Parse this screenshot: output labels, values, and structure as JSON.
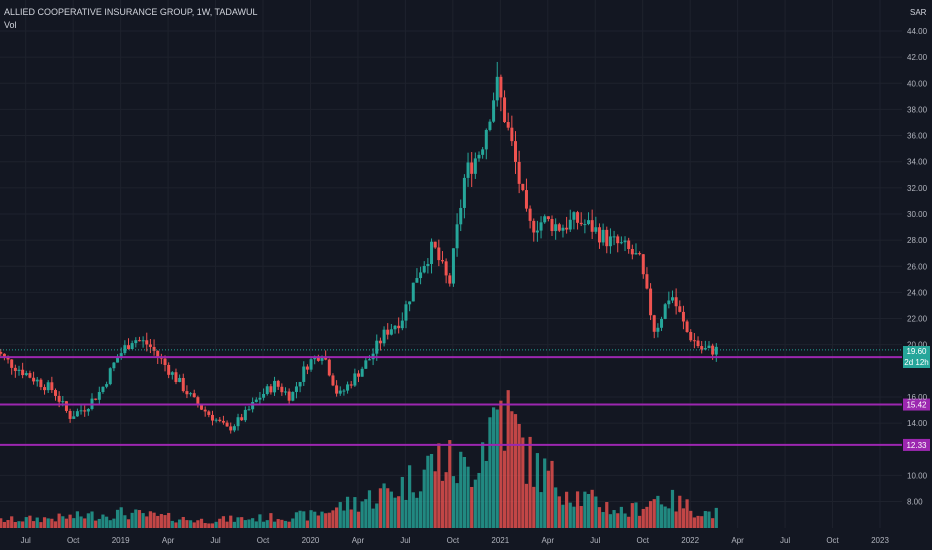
{
  "header": {
    "title": "ALLIED COOPERATIVE INSURANCE GROUP, 1W, TADAWUL",
    "volume_label": "Vol"
  },
  "currency": "SAR",
  "last_price": {
    "value": "19.60",
    "countdown": "2d 12h",
    "color": "#26a69a"
  },
  "colors": {
    "background": "#131722",
    "up": "#26a69a",
    "down": "#ef5350",
    "level_line": "#9c27b0",
    "grid": "#1e222d",
    "axis_text": "#b2b5be"
  },
  "chart_data": {
    "type": "candlestick",
    "title": "ALLIED COOPERATIVE INSURANCE GROUP, 1W, TADAWUL",
    "y_axis_ticks": [
      "8.00",
      "10.00",
      "14.00",
      "16.00",
      "20.00",
      "22.00",
      "24.00",
      "26.00",
      "28.00",
      "30.00",
      "32.00",
      "34.00",
      "36.00",
      "38.00",
      "40.00",
      "42.00",
      "44.00"
    ],
    "ylim": [
      6,
      46
    ],
    "x_axis_ticks": [
      "Jul",
      "Oct",
      "2019",
      "Apr",
      "Jul",
      "Oct",
      "2020",
      "Apr",
      "Jul",
      "Oct",
      "2021",
      "Apr",
      "Jul",
      "Oct",
      "2022",
      "Apr",
      "Jul",
      "Oct",
      "2023"
    ],
    "horizontal_levels": [
      {
        "value": 19.05,
        "label": "19.05"
      },
      {
        "value": 15.42,
        "label": "15.42"
      },
      {
        "value": 12.33,
        "label": "12.33"
      }
    ],
    "price_path": [
      [
        "2018-05",
        20.0
      ],
      [
        "2018-06",
        18.8
      ],
      [
        "2018-07",
        18.0
      ],
      [
        "2018-08",
        17.2
      ],
      [
        "2018-09",
        16.5
      ],
      [
        "2018-10",
        14.5
      ],
      [
        "2018-11",
        15.2
      ],
      [
        "2018-12",
        16.5
      ],
      [
        "2019-01",
        19.0
      ],
      [
        "2019-02",
        20.5
      ],
      [
        "2019-03",
        20.0
      ],
      [
        "2019-04",
        18.5
      ],
      [
        "2019-05",
        17.0
      ],
      [
        "2019-06",
        15.5
      ],
      [
        "2019-07",
        14.5
      ],
      [
        "2019-08",
        13.5
      ],
      [
        "2019-09",
        14.5
      ],
      [
        "2019-10",
        16.0
      ],
      [
        "2019-11",
        17.0
      ],
      [
        "2019-12",
        16.0
      ],
      [
        "2020-01",
        18.5
      ],
      [
        "2020-02",
        19.5
      ],
      [
        "2020-03",
        16.0
      ],
      [
        "2020-04",
        17.5
      ],
      [
        "2020-05",
        19.0
      ],
      [
        "2020-06",
        21.0
      ],
      [
        "2020-07",
        22.0
      ],
      [
        "2020-08",
        25.5
      ],
      [
        "2020-09",
        27.5
      ],
      [
        "2020-10",
        24.5
      ],
      [
        "2020-11",
        33.0
      ],
      [
        "2020-12",
        35.0
      ],
      [
        "2021-01",
        40.0
      ],
      [
        "2021-02",
        35.0
      ],
      [
        "2021-03",
        29.0
      ],
      [
        "2021-04",
        29.5
      ],
      [
        "2021-05",
        29.0
      ],
      [
        "2021-06",
        29.5
      ],
      [
        "2021-07",
        29.0
      ],
      [
        "2021-08",
        28.0
      ],
      [
        "2021-09",
        27.5
      ],
      [
        "2021-10",
        26.5
      ],
      [
        "2021-11",
        21.0
      ],
      [
        "2021-12",
        24.0
      ],
      [
        "2022-01",
        21.0
      ],
      [
        "2022-02",
        19.6
      ]
    ],
    "volume_profile": [
      [
        "2018-05",
        0.06
      ],
      [
        "2018-09",
        0.08
      ],
      [
        "2019-01",
        0.12
      ],
      [
        "2019-06",
        0.06
      ],
      [
        "2019-10",
        0.08
      ],
      [
        "2020-01",
        0.1
      ],
      [
        "2020-05",
        0.25
      ],
      [
        "2020-07",
        0.35
      ],
      [
        "2020-09",
        0.55
      ],
      [
        "2020-11",
        0.45
      ],
      [
        "2021-01",
        1.0
      ],
      [
        "2021-03",
        0.5
      ],
      [
        "2021-06",
        0.25
      ],
      [
        "2021-09",
        0.12
      ],
      [
        "2021-11",
        0.25
      ],
      [
        "2022-02",
        0.12
      ]
    ]
  }
}
